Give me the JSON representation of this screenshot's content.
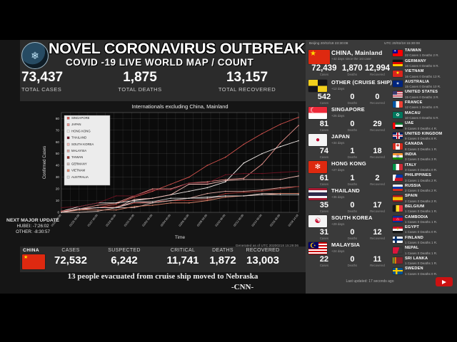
{
  "icons": {
    "logo_glyph": "❄"
  },
  "header": {
    "title": "NOVEL CORONAVIRUS OUTBREAK",
    "subtitle": "COVID -19 LIVE WORLD MAP / COUNT",
    "stats": [
      {
        "value": "73,437",
        "label": "TOTAL CASES"
      },
      {
        "value": "1,875",
        "label": "TOTAL DEATHS"
      },
      {
        "value": "13,157",
        "label": "TOTAL RECOVERED"
      }
    ]
  },
  "next_update": {
    "line1": "NEXT MAJOR UPDATE",
    "line2": "HUBEI: -7:26:02",
    "line3": "OTHER: -8:30:57"
  },
  "generated_note": "Generated as of UTC 20200218 15:29:06",
  "chart_data": {
    "type": "line",
    "title": "Internationals excluding China, Mainland",
    "xlabel": "Time",
    "ylabel": "Confirmed Cases",
    "ylim": [
      0,
      80
    ],
    "grid": true,
    "legend_position": "upper left",
    "x": [
      "01/23 06:00",
      "01/25 06:00",
      "01/27 06:00",
      "01/29 06:00",
      "01/31 06:00",
      "02/02 06:00",
      "02/04 06:00",
      "02/06 06:00",
      "02/08 06:00",
      "02/10 06:00",
      "02/12 06:00",
      "02/14 06:00",
      "02/16 06:00",
      "02/18 14:19"
    ],
    "series": [
      {
        "name": "SINGAPORE",
        "color": "#d4534e",
        "values": [
          1,
          3,
          4,
          7,
          13,
          18,
          24,
          30,
          40,
          47,
          58,
          67,
          75,
          81
        ]
      },
      {
        "name": "JAPAN",
        "color": "#e8928c",
        "values": [
          1,
          3,
          6,
          8,
          14,
          20,
          20,
          25,
          26,
          28,
          29,
          41,
          59,
          74
        ]
      },
      {
        "name": "HONG KONG",
        "color": "#f2ece9",
        "values": [
          1,
          5,
          8,
          8,
          10,
          12,
          15,
          18,
          21,
          26,
          42,
          50,
          56,
          61
        ]
      },
      {
        "name": "THAILAND",
        "color": "#6e1423",
        "values": [
          4,
          5,
          8,
          14,
          14,
          19,
          19,
          25,
          25,
          32,
          33,
          33,
          34,
          35
        ]
      },
      {
        "name": "SOUTH KOREA",
        "color": "#f0b9b3",
        "values": [
          1,
          2,
          4,
          4,
          11,
          12,
          15,
          24,
          24,
          27,
          28,
          28,
          28,
          31
        ]
      },
      {
        "name": "MALAYSIA",
        "color": "#dba39d",
        "values": [
          0,
          3,
          4,
          4,
          8,
          8,
          10,
          12,
          16,
          18,
          18,
          19,
          21,
          22
        ]
      },
      {
        "name": "TAIWAN",
        "color": "#9c2f2a",
        "values": [
          1,
          3,
          4,
          5,
          8,
          9,
          10,
          10,
          11,
          16,
          17,
          18,
          20,
          22
        ]
      },
      {
        "name": "GERMANY",
        "color": "#cdb6b1",
        "values": [
          0,
          0,
          1,
          4,
          4,
          8,
          10,
          12,
          12,
          14,
          14,
          16,
          16,
          16
        ]
      },
      {
        "name": "VIETNAM",
        "color": "#e2876e",
        "values": [
          0,
          2,
          2,
          2,
          5,
          6,
          8,
          8,
          10,
          13,
          14,
          15,
          16,
          16
        ]
      },
      {
        "name": "AUSTRALIA",
        "color": "#d8d8d8",
        "values": [
          0,
          3,
          4,
          4,
          9,
          9,
          12,
          12,
          13,
          14,
          14,
          15,
          15,
          15
        ]
      }
    ]
  },
  "china_bar": {
    "country": "CHINA",
    "flag": {
      "bg": "#de2910",
      "glyph": "★",
      "glyph_color": "#ffde00",
      "glyph_pos": "tl"
    },
    "stats": [
      {
        "label": "CASES",
        "value": "72,532"
      },
      {
        "label": "SUSPECTED",
        "value": "6,242"
      },
      {
        "label": "CRITICAL",
        "value": "11,741"
      },
      {
        "label": "DEATHS",
        "value": "1,872"
      },
      {
        "label": "RECOVERED",
        "value": "13,003"
      }
    ]
  },
  "ticker": {
    "headline": "13 people evacuated from cruise ship moved to Nebraska",
    "source": "-CNN-"
  },
  "panel": {
    "beijing_time": "Beijing 20/02/18 23:30:08",
    "utc_time": "UTC 20/02/18 15:30:08",
    "col_labels": {
      "cases": "Cases",
      "deaths": "Deaths",
      "recovered": "Recovered"
    },
    "last_updated": "Last updated: 17 seconds ago",
    "main_rows": [
      {
        "name": "CHINA, Mainland",
        "days": "+42 days since the 1st case",
        "cases": "72,439",
        "deaths": "1,870",
        "recovered": "12,994",
        "flag": {
          "bg": "#de2910",
          "glyph": "★",
          "glyph_color": "#ffde00",
          "glyph_pos": "tl"
        }
      },
      {
        "name": "OTHER (CRUISE SHIP)",
        "days": "+12 days",
        "cases": "542",
        "deaths": "0",
        "recovered": "0",
        "flag": {
          "bg": "conic-gradient(#15151a 0 25%, #f2cf1c 0 50%, #15151a 0 75%, #f2cf1c 0)"
        }
      },
      {
        "name": "SINGAPORE",
        "days": "+26 days",
        "cases": "81",
        "deaths": "0",
        "recovered": "29",
        "flag": {
          "bg": "linear-gradient(#ed2939 0 50%, #ffffff 0)",
          "glyph": "☾",
          "glyph_color": "#ffffff",
          "glyph_pos": "tl"
        }
      },
      {
        "name": "JAPAN",
        "days": "+34 days",
        "cases": "74",
        "deaths": "1",
        "recovered": "18",
        "flag": {
          "bg": "#f4f4f4",
          "glyph": "●",
          "glyph_color": "#bc002d"
        }
      },
      {
        "name": "HONG KONG",
        "days": "+27 days",
        "cases": "61",
        "deaths": "1",
        "recovered": "2",
        "flag": {
          "bg": "#de2910",
          "glyph": "✻",
          "glyph_color": "#ffffff"
        }
      },
      {
        "name": "THAILAND",
        "days": "+36 days",
        "cases": "35",
        "deaths": "0",
        "recovered": "17",
        "flag": {
          "bg": "linear-gradient(#a51931 0 17%, #f4f5f8 0 34%, #2d2a4a 0 66%, #f4f5f8 0 83%, #a51931 0)"
        }
      },
      {
        "name": "SOUTH KOREA",
        "days": "+29 days",
        "cases": "31",
        "deaths": "0",
        "recovered": "12",
        "flag": {
          "bg": "#f4f4f4",
          "glyph": "☯",
          "glyph_color": "#c60c30"
        }
      },
      {
        "name": "MALAYSIA",
        "days": "+24 days",
        "cases": "22",
        "deaths": "0",
        "recovered": "11",
        "flag": {
          "bg": "linear-gradient(#010066 0 100%) left top/55% 55% no-repeat, repeating-linear-gradient(#cc0001 0 2px, #ffffff 2px 4px)",
          "glyph": "☪",
          "glyph_color": "#ffcc00",
          "glyph_pos": "tl"
        }
      }
    ],
    "mini_rows": [
      {
        "name": "TAIWAN",
        "line": "22 Cases   1 Deaths   2 R.",
        "flag": {
          "bg": "linear-gradient(#000095 0 100%) left top/50% 55% no-repeat, linear-gradient(#fe0000 0 100%)",
          "glyph": "☀",
          "glyph_color": "#ffffff",
          "glyph_pos": "tl"
        }
      },
      {
        "name": "GERMANY",
        "line": "16 Cases   0 Deaths   9 R.",
        "flag": {
          "bg": "linear-gradient(#111111 0 33%, #dd0000 0 66%, #ffce00 0)"
        }
      },
      {
        "name": "VIETNAM",
        "line": "16 Cases   0 Deaths   13 R.",
        "flag": {
          "bg": "#da251d",
          "glyph": "★",
          "glyph_color": "#ffff00"
        }
      },
      {
        "name": "AUSTRALIA",
        "line": "15 Cases   0 Deaths   10 R.",
        "flag": {
          "bg": "#00247d",
          "glyph": "✶",
          "glyph_color": "#ffffff"
        }
      },
      {
        "name": "UNITED STATES",
        "line": "15 Cases   0 Deaths   3 R.",
        "flag": {
          "bg": "linear-gradient(#3c3b6e 0 100%) left top/45% 55% no-repeat, repeating-linear-gradient(#b22234 0 1.5px, #ffffff 1.5px 3px)"
        }
      },
      {
        "name": "FRANCE",
        "line": "12 Cases   1 Deaths   4 R.",
        "flag": {
          "bg": "linear-gradient(90deg, #0055a4 0 33%, #ffffff 0 66%, #ef4135 0)"
        }
      },
      {
        "name": "MACAU",
        "line": "10 Cases   0 Deaths   5 R.",
        "flag": {
          "bg": "#00785e",
          "glyph": "✿",
          "glyph_color": "#ffffff"
        }
      },
      {
        "name": "UAE",
        "line": "9 Cases   0 Deaths   4 R.",
        "flag": {
          "bg": "linear-gradient(90deg, #ff0000 0 26%, transparent 0), linear-gradient(#00732f 0 33%, #ffffff 0 66%, #111111 0)"
        }
      },
      {
        "name": "UNITED KINGDOM",
        "line": "9 Cases   0 Deaths   8 R.",
        "flag": {
          "bg": "linear-gradient(#c8102e 0 100%) center/100% 16% no-repeat, linear-gradient(#c8102e 0 100%) center/16% 100% no-repeat, linear-gradient(#ffffff 0 100%) center/100% 34% no-repeat, linear-gradient(#ffffff 0 100%) center/34% 100% no-repeat, #012169"
        }
      },
      {
        "name": "CANADA",
        "line": "8 Cases   0 Deaths   1 R.",
        "flag": {
          "bg": "linear-gradient(90deg, #d52b1e 0 28%, #ffffff 0 72%, #d52b1e 0)",
          "glyph": "✱",
          "glyph_color": "#d52b1e"
        }
      },
      {
        "name": "INDIA",
        "line": "3 Cases   0 Deaths   3 R.",
        "flag": {
          "bg": "linear-gradient(#ff9933 0 33%, #ffffff 0 66%, #138808 0)",
          "glyph": "◎",
          "glyph_color": "#000080"
        }
      },
      {
        "name": "ITALY",
        "line": "3 Cases   0 Deaths   0 R.",
        "flag": {
          "bg": "linear-gradient(90deg, #009246 0 33%, #ffffff 0 66%, #ce2b37 0)"
        }
      },
      {
        "name": "PHILIPPINES",
        "line": "3 Cases   1 Deaths   2 R.",
        "flag": {
          "bg": "linear-gradient(105deg, #f5f5f5 0 30%, transparent 0), linear-gradient(#0038a8 0 50%, #ce1126 0)"
        }
      },
      {
        "name": "RUSSIA",
        "line": "2 Cases   0 Deaths   2 R.",
        "flag": {
          "bg": "linear-gradient(#ffffff 0 33%, #0039a6 0 66%, #d52b1e 0)"
        }
      },
      {
        "name": "SPAIN",
        "line": "2 Cases   0 Deaths   2 R.",
        "flag": {
          "bg": "linear-gradient(#aa151b 0 25%, #f1bf00 0 75%, #aa151b 0)"
        }
      },
      {
        "name": "BELGIUM",
        "line": "1 Cases   0 Deaths   1 R.",
        "flag": {
          "bg": "linear-gradient(90deg, #151515 0 33%, #fdda25 0 66%, #ef3340 0)"
        }
      },
      {
        "name": "CAMBODIA",
        "line": "1 Cases   0 Deaths   1 R.",
        "flag": {
          "bg": "linear-gradient(#032ea1 0 25%, #e00025 0 75%, #032ea1 0)",
          "glyph": "⌂",
          "glyph_color": "#ffffff"
        }
      },
      {
        "name": "EGYPT",
        "line": "1 Cases   0 Deaths   0 R.",
        "flag": {
          "bg": "linear-gradient(#ce1126 0 33%, #ffffff 0 66%, #151515 0)",
          "glyph": "✦",
          "glyph_color": "#c09300"
        }
      },
      {
        "name": "FINLAND",
        "line": "1 Cases   0 Deaths   1 R.",
        "flag": {
          "bg": "linear-gradient(#002f6c 0 100%) center/100% 30% no-repeat, linear-gradient(#002f6c 0 100%) 30% 0/20% 100% no-repeat, #ffffff"
        }
      },
      {
        "name": "NEPAL",
        "line": "1 Cases   0 Deaths   1 R.",
        "flag": {
          "bg": "linear-gradient(110deg, #dc143c 0 55%, #3a3a3a 0)"
        }
      },
      {
        "name": "SRI LANKA",
        "line": "1 Cases   0 Deaths   1 R.",
        "flag": {
          "bg": "linear-gradient(90deg, #ffb700 0 8%, #006847 0 18%, #ff7900 0 28%, #ffb700 0 33%, #8d2029 0)"
        }
      },
      {
        "name": "SWEDEN",
        "line": "1 Cases   0 Deaths   0 R.",
        "flag": {
          "bg": "linear-gradient(#fecc00 0 100%) center/100% 26% no-repeat, linear-gradient(#fecc00 0 100%) 32% 0/18% 100% no-repeat, #005293"
        }
      }
    ]
  }
}
